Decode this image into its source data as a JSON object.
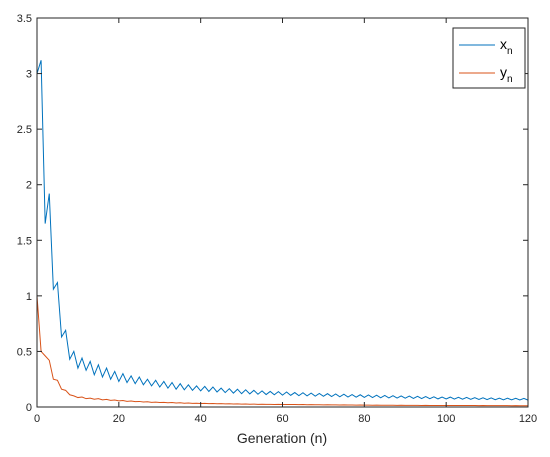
{
  "chart_data": {
    "type": "line",
    "title": "",
    "xlabel": "Generation (n)",
    "ylabel": "",
    "xlim": [
      0,
      120
    ],
    "ylim": [
      0,
      3.5
    ],
    "xticks": [
      0,
      20,
      40,
      60,
      80,
      100,
      120
    ],
    "yticks": [
      0,
      0.5,
      1,
      1.5,
      2,
      2.5,
      3,
      3.5
    ],
    "xtick_labels": [
      "0",
      "20",
      "40",
      "60",
      "80",
      "100",
      "120"
    ],
    "ytick_labels": [
      "0",
      "0.5",
      "1",
      "1.5",
      "2",
      "2.5",
      "3",
      "3.5"
    ],
    "grid": false,
    "legend_position": "top-right",
    "series": [
      {
        "name": "x",
        "name_subscript": "n",
        "color": "#0072BD",
        "x": [
          0,
          1,
          2,
          3,
          4,
          5,
          6,
          7,
          8,
          9,
          10,
          11,
          12,
          13,
          14,
          15,
          16,
          17,
          18,
          19,
          20,
          21,
          22,
          23,
          24,
          25,
          26,
          27,
          28,
          29,
          30,
          31,
          32,
          33,
          34,
          35,
          36,
          37,
          38,
          39,
          40,
          41,
          42,
          43,
          44,
          45,
          46,
          47,
          48,
          49,
          50,
          51,
          52,
          53,
          54,
          55,
          56,
          57,
          58,
          59,
          60,
          61,
          62,
          63,
          64,
          65,
          66,
          67,
          68,
          69,
          70,
          71,
          72,
          73,
          74,
          75,
          76,
          77,
          78,
          79,
          80,
          81,
          82,
          83,
          84,
          85,
          86,
          87,
          88,
          89,
          90,
          91,
          92,
          93,
          94,
          95,
          96,
          97,
          98,
          99,
          100,
          101,
          102,
          103,
          104,
          105,
          106,
          107,
          108,
          109,
          110,
          111,
          112,
          113,
          114,
          115,
          116,
          117,
          118,
          119,
          120
        ],
        "y": [
          3.0,
          3.12,
          1.65,
          1.92,
          1.06,
          1.12,
          0.63,
          0.69,
          0.43,
          0.5,
          0.35,
          0.44,
          0.33,
          0.41,
          0.29,
          0.38,
          0.27,
          0.35,
          0.25,
          0.32,
          0.23,
          0.3,
          0.22,
          0.28,
          0.21,
          0.27,
          0.2,
          0.25,
          0.19,
          0.24,
          0.18,
          0.23,
          0.17,
          0.22,
          0.16,
          0.21,
          0.155,
          0.2,
          0.15,
          0.19,
          0.145,
          0.185,
          0.14,
          0.18,
          0.135,
          0.17,
          0.13,
          0.165,
          0.125,
          0.16,
          0.12,
          0.155,
          0.118,
          0.15,
          0.115,
          0.145,
          0.112,
          0.14,
          0.11,
          0.138,
          0.107,
          0.135,
          0.105,
          0.13,
          0.102,
          0.128,
          0.1,
          0.125,
          0.098,
          0.122,
          0.096,
          0.12,
          0.094,
          0.117,
          0.092,
          0.115,
          0.09,
          0.112,
          0.088,
          0.11,
          0.086,
          0.108,
          0.085,
          0.106,
          0.083,
          0.104,
          0.082,
          0.102,
          0.08,
          0.1,
          0.079,
          0.098,
          0.077,
          0.096,
          0.076,
          0.094,
          0.075,
          0.092,
          0.073,
          0.09,
          0.072,
          0.089,
          0.071,
          0.087,
          0.07,
          0.086,
          0.069,
          0.084,
          0.068,
          0.083,
          0.067,
          0.082,
          0.066,
          0.08,
          0.065,
          0.079,
          0.064,
          0.078,
          0.063,
          0.077,
          0.062
        ]
      },
      {
        "name": "y",
        "name_subscript": "n",
        "color": "#D95319",
        "x": [
          0,
          1,
          2,
          3,
          4,
          5,
          6,
          7,
          8,
          9,
          10,
          11,
          12,
          13,
          14,
          15,
          16,
          17,
          18,
          19,
          20,
          21,
          22,
          23,
          24,
          25,
          26,
          27,
          28,
          29,
          30,
          31,
          32,
          33,
          34,
          35,
          36,
          37,
          38,
          39,
          40,
          41,
          42,
          43,
          44,
          45,
          46,
          47,
          48,
          49,
          50,
          51,
          52,
          53,
          54,
          55,
          56,
          57,
          58,
          59,
          60,
          61,
          62,
          63,
          64,
          65,
          66,
          67,
          68,
          69,
          70,
          71,
          72,
          73,
          74,
          75,
          76,
          77,
          78,
          79,
          80,
          81,
          82,
          83,
          84,
          85,
          86,
          87,
          88,
          89,
          90,
          91,
          92,
          93,
          94,
          95,
          96,
          97,
          98,
          99,
          100,
          101,
          102,
          103,
          104,
          105,
          106,
          107,
          108,
          109,
          110,
          111,
          112,
          113,
          114,
          115,
          116,
          117,
          118,
          119,
          120
        ],
        "y": [
          1.0,
          0.5,
          0.46,
          0.42,
          0.25,
          0.24,
          0.16,
          0.15,
          0.11,
          0.1,
          0.085,
          0.09,
          0.075,
          0.08,
          0.07,
          0.075,
          0.064,
          0.068,
          0.06,
          0.063,
          0.055,
          0.058,
          0.051,
          0.054,
          0.048,
          0.05,
          0.045,
          0.047,
          0.042,
          0.044,
          0.04,
          0.042,
          0.038,
          0.04,
          0.036,
          0.038,
          0.034,
          0.036,
          0.033,
          0.034,
          0.031,
          0.033,
          0.03,
          0.031,
          0.029,
          0.03,
          0.028,
          0.029,
          0.027,
          0.028,
          0.026,
          0.027,
          0.025,
          0.026,
          0.024,
          0.025,
          0.024,
          0.024,
          0.023,
          0.024,
          0.022,
          0.023,
          0.022,
          0.022,
          0.021,
          0.022,
          0.02,
          0.021,
          0.02,
          0.02,
          0.019,
          0.02,
          0.019,
          0.019,
          0.018,
          0.019,
          0.018,
          0.018,
          0.017,
          0.018,
          0.017,
          0.017,
          0.016,
          0.017,
          0.016,
          0.016,
          0.016,
          0.016,
          0.015,
          0.016,
          0.015,
          0.015,
          0.015,
          0.015,
          0.014,
          0.015,
          0.014,
          0.014,
          0.014,
          0.014,
          0.013,
          0.014,
          0.013,
          0.013,
          0.013,
          0.013,
          0.013,
          0.013,
          0.012,
          0.013,
          0.012,
          0.012,
          0.012,
          0.012,
          0.012,
          0.012,
          0.011,
          0.012,
          0.011,
          0.011,
          0.011
        ]
      }
    ]
  }
}
